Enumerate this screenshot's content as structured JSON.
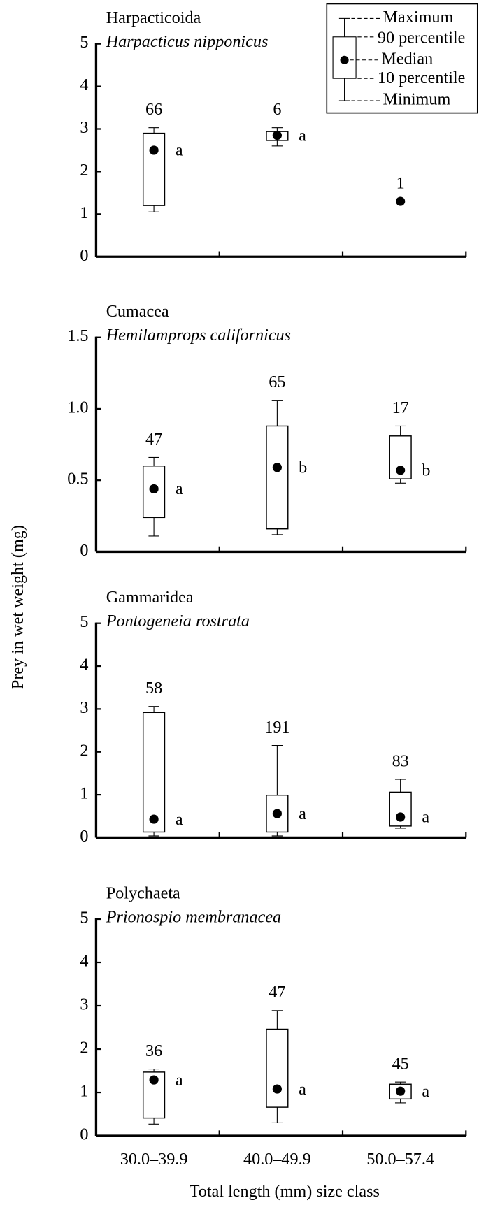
{
  "ylabel": "Prey in wet weight (mg)",
  "legend_labels": [
    "Maximum",
    "90 percentile",
    "Median",
    "10 percentile",
    "Minimum"
  ],
  "chart_data": [
    {
      "type": "box",
      "title": "Harpacticoida",
      "subtitle": "Harpacticus nipponicus",
      "ylim": [
        0,
        5
      ],
      "yticks": [
        0,
        1,
        2,
        3,
        4,
        5
      ],
      "boxes": [
        {
          "min": 1.05,
          "p10": 1.2,
          "median": 2.5,
          "p90": 2.9,
          "max": 3.03,
          "n": 66,
          "group": "a"
        },
        {
          "min": 2.6,
          "p10": 2.73,
          "median": 2.85,
          "p90": 2.94,
          "max": 3.03,
          "n": 6,
          "group": "a"
        },
        {
          "min": null,
          "p10": null,
          "median": 1.3,
          "p90": null,
          "max": null,
          "n": 1
        }
      ]
    },
    {
      "type": "box",
      "title": "Cumacea",
      "subtitle": "Hemilamprops californicus",
      "ylim": [
        0,
        1.5
      ],
      "yticks": [
        0,
        0.5,
        {
          "value": 1,
          "label": "1.0"
        },
        {
          "value": 1.5,
          "label": "1.5"
        }
      ],
      "boxes": [
        {
          "min": 0.11,
          "p10": 0.24,
          "median": 0.44,
          "p90": 0.6,
          "max": 0.66,
          "n": 47,
          "group": "a"
        },
        {
          "min": 0.12,
          "p10": 0.16,
          "median": 0.59,
          "p90": 0.88,
          "max": 1.06,
          "n": 65,
          "group": "b"
        },
        {
          "min": 0.48,
          "p10": 0.51,
          "median": 0.57,
          "p90": 0.81,
          "max": 0.88,
          "n": 17,
          "group": "b"
        }
      ]
    },
    {
      "type": "box",
      "title": "Gammaridea",
      "subtitle": "Pontogeneia rostrata",
      "ylim": [
        0,
        5
      ],
      "yticks": [
        0,
        1,
        2,
        3,
        4,
        5
      ],
      "boxes": [
        {
          "min": 0.04,
          "p10": 0.13,
          "median": 0.43,
          "p90": 2.92,
          "max": 3.06,
          "n": 58,
          "group": "a"
        },
        {
          "min": 0.04,
          "p10": 0.13,
          "median": 0.56,
          "p90": 0.99,
          "max": 2.15,
          "n": 191,
          "group": "a"
        },
        {
          "min": 0.22,
          "p10": 0.27,
          "median": 0.48,
          "p90": 1.06,
          "max": 1.36,
          "n": 83,
          "group": "a"
        }
      ]
    },
    {
      "type": "box",
      "title": "Polychaeta",
      "subtitle": "Prionospio membranacea",
      "ylim": [
        0,
        5
      ],
      "yticks": [
        0,
        1,
        2,
        3,
        4,
        5
      ],
      "categories": [
        "30.0–39.9",
        "40.0–49.9",
        "50.0–57.4"
      ],
      "xlabel": "Total length (mm) size class",
      "boxes": [
        {
          "min": 0.27,
          "p10": 0.41,
          "median": 1.29,
          "p90": 1.47,
          "max": 1.54,
          "n": 36,
          "group": "a"
        },
        {
          "min": 0.3,
          "p10": 0.66,
          "median": 1.08,
          "p90": 2.46,
          "max": 2.89,
          "n": 47,
          "group": "a"
        },
        {
          "min": 0.76,
          "p10": 0.85,
          "median": 1.03,
          "p90": 1.19,
          "max": 1.24,
          "n": 45,
          "group": "a"
        }
      ]
    }
  ]
}
